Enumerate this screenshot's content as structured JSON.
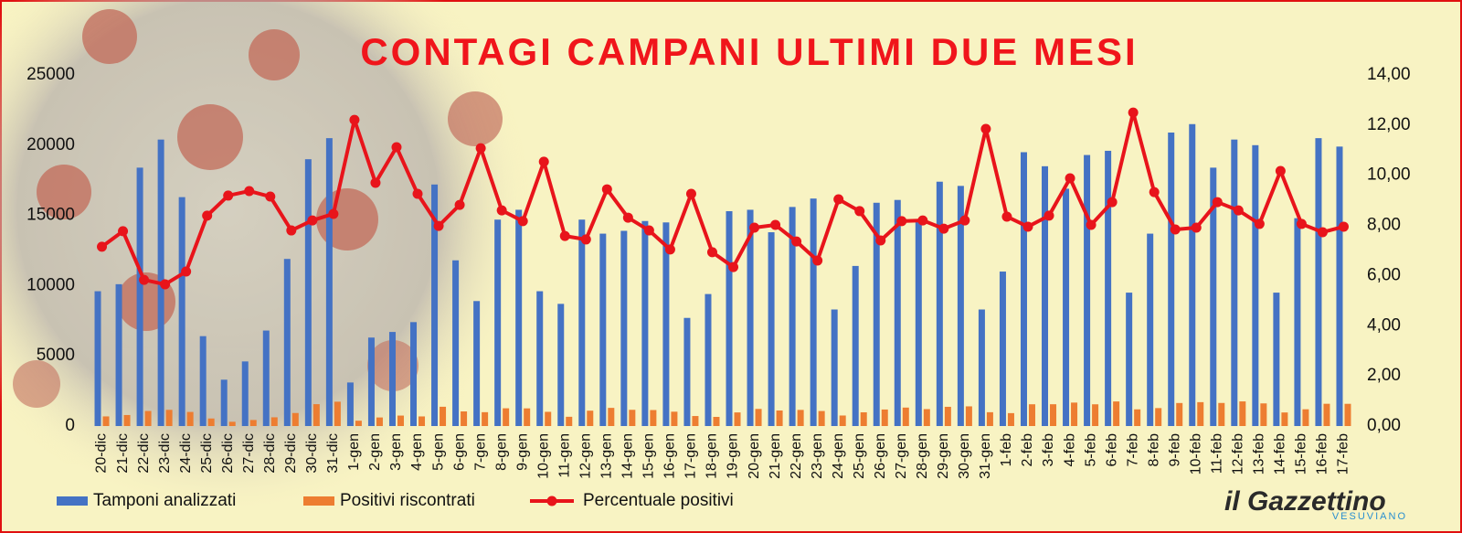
{
  "chart_data": {
    "type": "combo",
    "title": "CONTAGI CAMPANI ULTIMI DUE MESI",
    "source": "il Gazzettino",
    "source_sub": "VESUVIANO",
    "categories": [
      "20-dic",
      "21-dic",
      "22-dic",
      "23-dic",
      "24-dic",
      "25-dic",
      "26-dic",
      "27-dic",
      "28-dic",
      "29-dic",
      "30-dic",
      "31-dic",
      "1-gen",
      "2-gen",
      "3-gen",
      "4-gen",
      "5-gen",
      "6-gen",
      "7-gen",
      "8-gen",
      "9-gen",
      "10-gen",
      "11-gen",
      "12-gen",
      "13-gen",
      "14-gen",
      "15-gen",
      "16-gen",
      "17-gen",
      "18-gen",
      "19-gen",
      "20-gen",
      "21-gen",
      "22-gen",
      "23-gen",
      "24-gen",
      "25-gen",
      "26-gen",
      "27-gen",
      "28-gen",
      "29-gen",
      "30-gen",
      "31-gen",
      "1-feb",
      "2-feb",
      "3-feb",
      "4-feb",
      "5-feb",
      "6-feb",
      "7-feb",
      "8-feb",
      "9-feb",
      "10-feb",
      "11-feb",
      "12-feb",
      "13-feb",
      "14-feb",
      "15-feb",
      "16-feb",
      "17-feb"
    ],
    "series": [
      {
        "name": "Tamponi analizzati",
        "color": "#4472c4",
        "kind": "bar",
        "values": [
          9600,
          10100,
          18400,
          20400,
          16300,
          6400,
          3300,
          4600,
          6800,
          11900,
          19000,
          20500,
          3100,
          6300,
          6700,
          7400,
          17200,
          11800,
          8900,
          14700,
          15400,
          9600,
          8700,
          14700,
          13700,
          13900,
          14600,
          14500,
          7700,
          9400,
          15300,
          15400,
          13800,
          15600,
          16200,
          8300,
          11400,
          15900,
          16100,
          14700,
          17400,
          17100,
          8300,
          11000,
          19500,
          18500,
          16900,
          19300,
          19600,
          9500,
          13700,
          20900,
          21500,
          18400,
          20400,
          20000,
          9500,
          14800,
          20500,
          19900
        ]
      },
      {
        "name": "Positivi riscontrati",
        "color": "#ed7d31",
        "kind": "bar",
        "values": [
          686,
          785,
          1073,
          1153,
          1004,
          537,
          303,
          431,
          622,
          928,
          1558,
          1734,
          379,
          611,
          745,
          685,
          1373,
          1041,
          986,
          1264,
          1258,
          1012,
          659,
          1094,
          1293,
          1155,
          1139,
          1021,
          713,
          651,
          970,
          1218,
          1107,
          1148,
          1069,
          750,
          977,
          1177,
          1315,
          1205,
          1369,
          1402,
          984,
          919,
          1550,
          1552,
          1670,
          1548,
          1750,
          1188,
          1278,
          1639,
          1701,
          1643,
          1754,
          1612,
          966,
          1193,
          1585,
          1582
        ]
      },
      {
        "name": "Percentuale positivi",
        "color": "#e8141b",
        "kind": "line",
        "axis": "y2",
        "values": [
          7.15,
          7.77,
          5.83,
          5.65,
          6.16,
          8.39,
          9.19,
          9.37,
          9.15,
          7.8,
          8.2,
          8.46,
          12.21,
          9.7,
          11.12,
          9.26,
          7.98,
          8.82,
          11.08,
          8.6,
          8.17,
          10.54,
          7.58,
          7.44,
          9.44,
          8.31,
          7.8,
          7.04,
          9.26,
          6.93,
          6.34,
          7.91,
          8.02,
          7.36,
          6.6,
          9.04,
          8.57,
          7.4,
          8.17,
          8.2,
          7.87,
          8.2,
          11.85,
          8.35,
          7.95,
          8.39,
          9.88,
          8.02,
          8.93,
          12.5,
          9.33,
          7.84,
          7.91,
          8.93,
          8.6,
          8.06,
          10.17,
          8.06,
          7.73,
          7.95
        ]
      }
    ],
    "ylim": [
      0,
      25000
    ],
    "yticks": [
      0,
      5000,
      10000,
      15000,
      20000,
      25000
    ],
    "y2lim": [
      0,
      14
    ],
    "y2ticks": [
      {
        "value": 0,
        "label": "0,00"
      },
      {
        "value": 2,
        "label": "2,00"
      },
      {
        "value": 4,
        "label": "4,00"
      },
      {
        "value": 6,
        "label": "6,00"
      },
      {
        "value": 8,
        "label": "8,00"
      },
      {
        "value": 10,
        "label": "10,00"
      },
      {
        "value": 12,
        "label": "12,00"
      },
      {
        "value": 14,
        "label": "14,00"
      }
    ],
    "grid": false,
    "legend": "bottom-left"
  }
}
